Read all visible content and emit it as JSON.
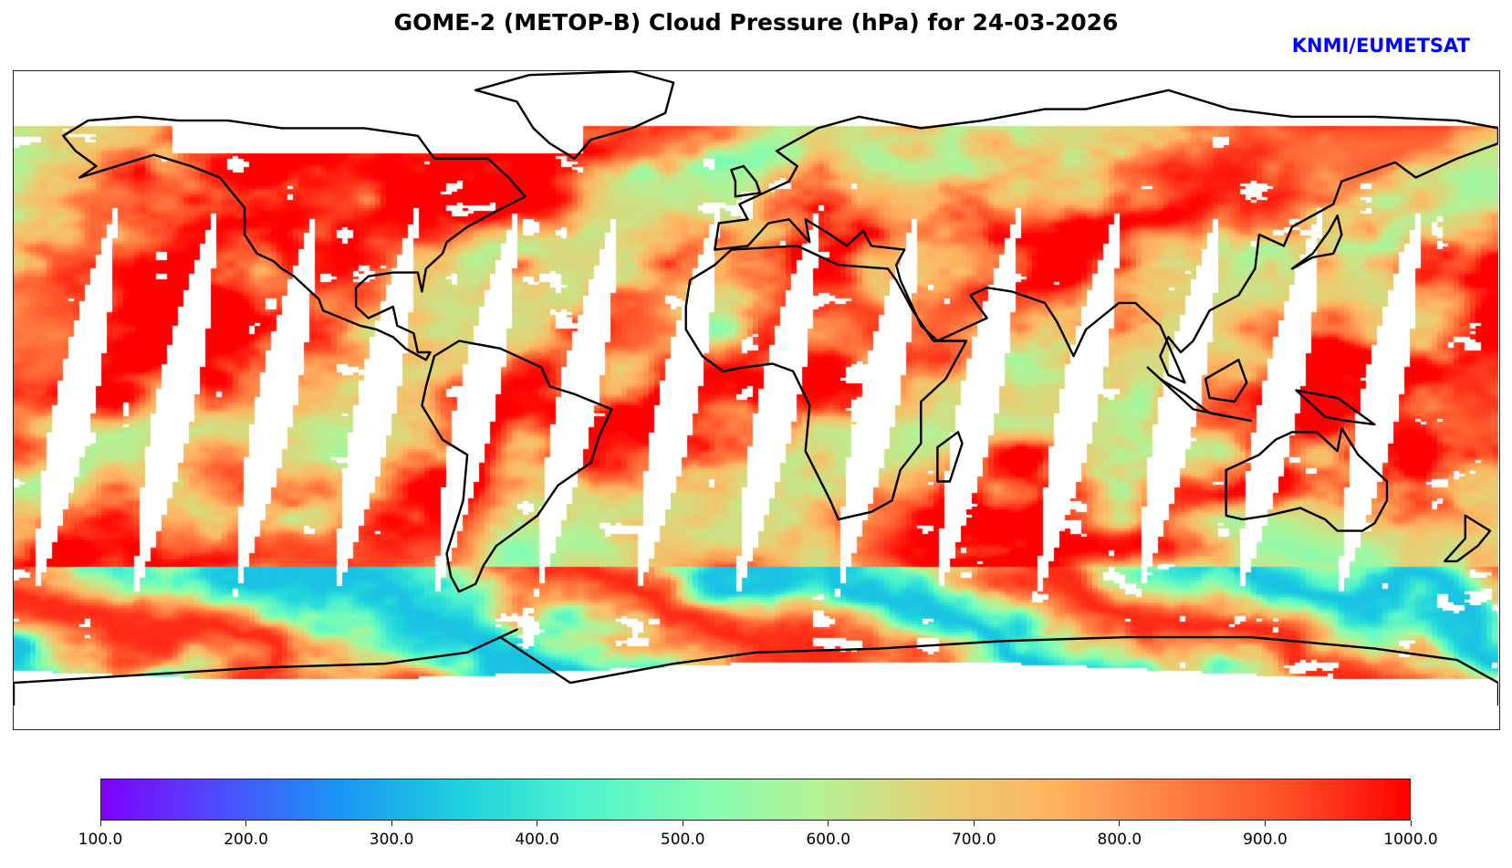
{
  "title": "GOME-2 (METOP-B) Cloud Pressure (hPa) for 24-03-2026",
  "credit": "KNMI/EUMETSAT",
  "map": {
    "projection": "plate-carree",
    "variable": "Cloud Pressure",
    "units": "hPa",
    "coastline_color": "#000000",
    "missing_color": "#ffffff"
  },
  "colorbar": {
    "colormap": "rainbow",
    "min": 100.0,
    "max": 1000.0,
    "ticks": [
      "100.0",
      "200.0",
      "300.0",
      "400.0",
      "500.0",
      "600.0",
      "700.0",
      "800.0",
      "900.0",
      "1000.0"
    ],
    "stops": [
      "#8000ff",
      "#4d4dfc",
      "#1996f3",
      "#1cd0de",
      "#4cf2ce",
      "#80fdb3",
      "#b3f296",
      "#e6d075",
      "#ffb360",
      "#ff7f43",
      "#ff4d27",
      "#ff0000"
    ]
  }
}
